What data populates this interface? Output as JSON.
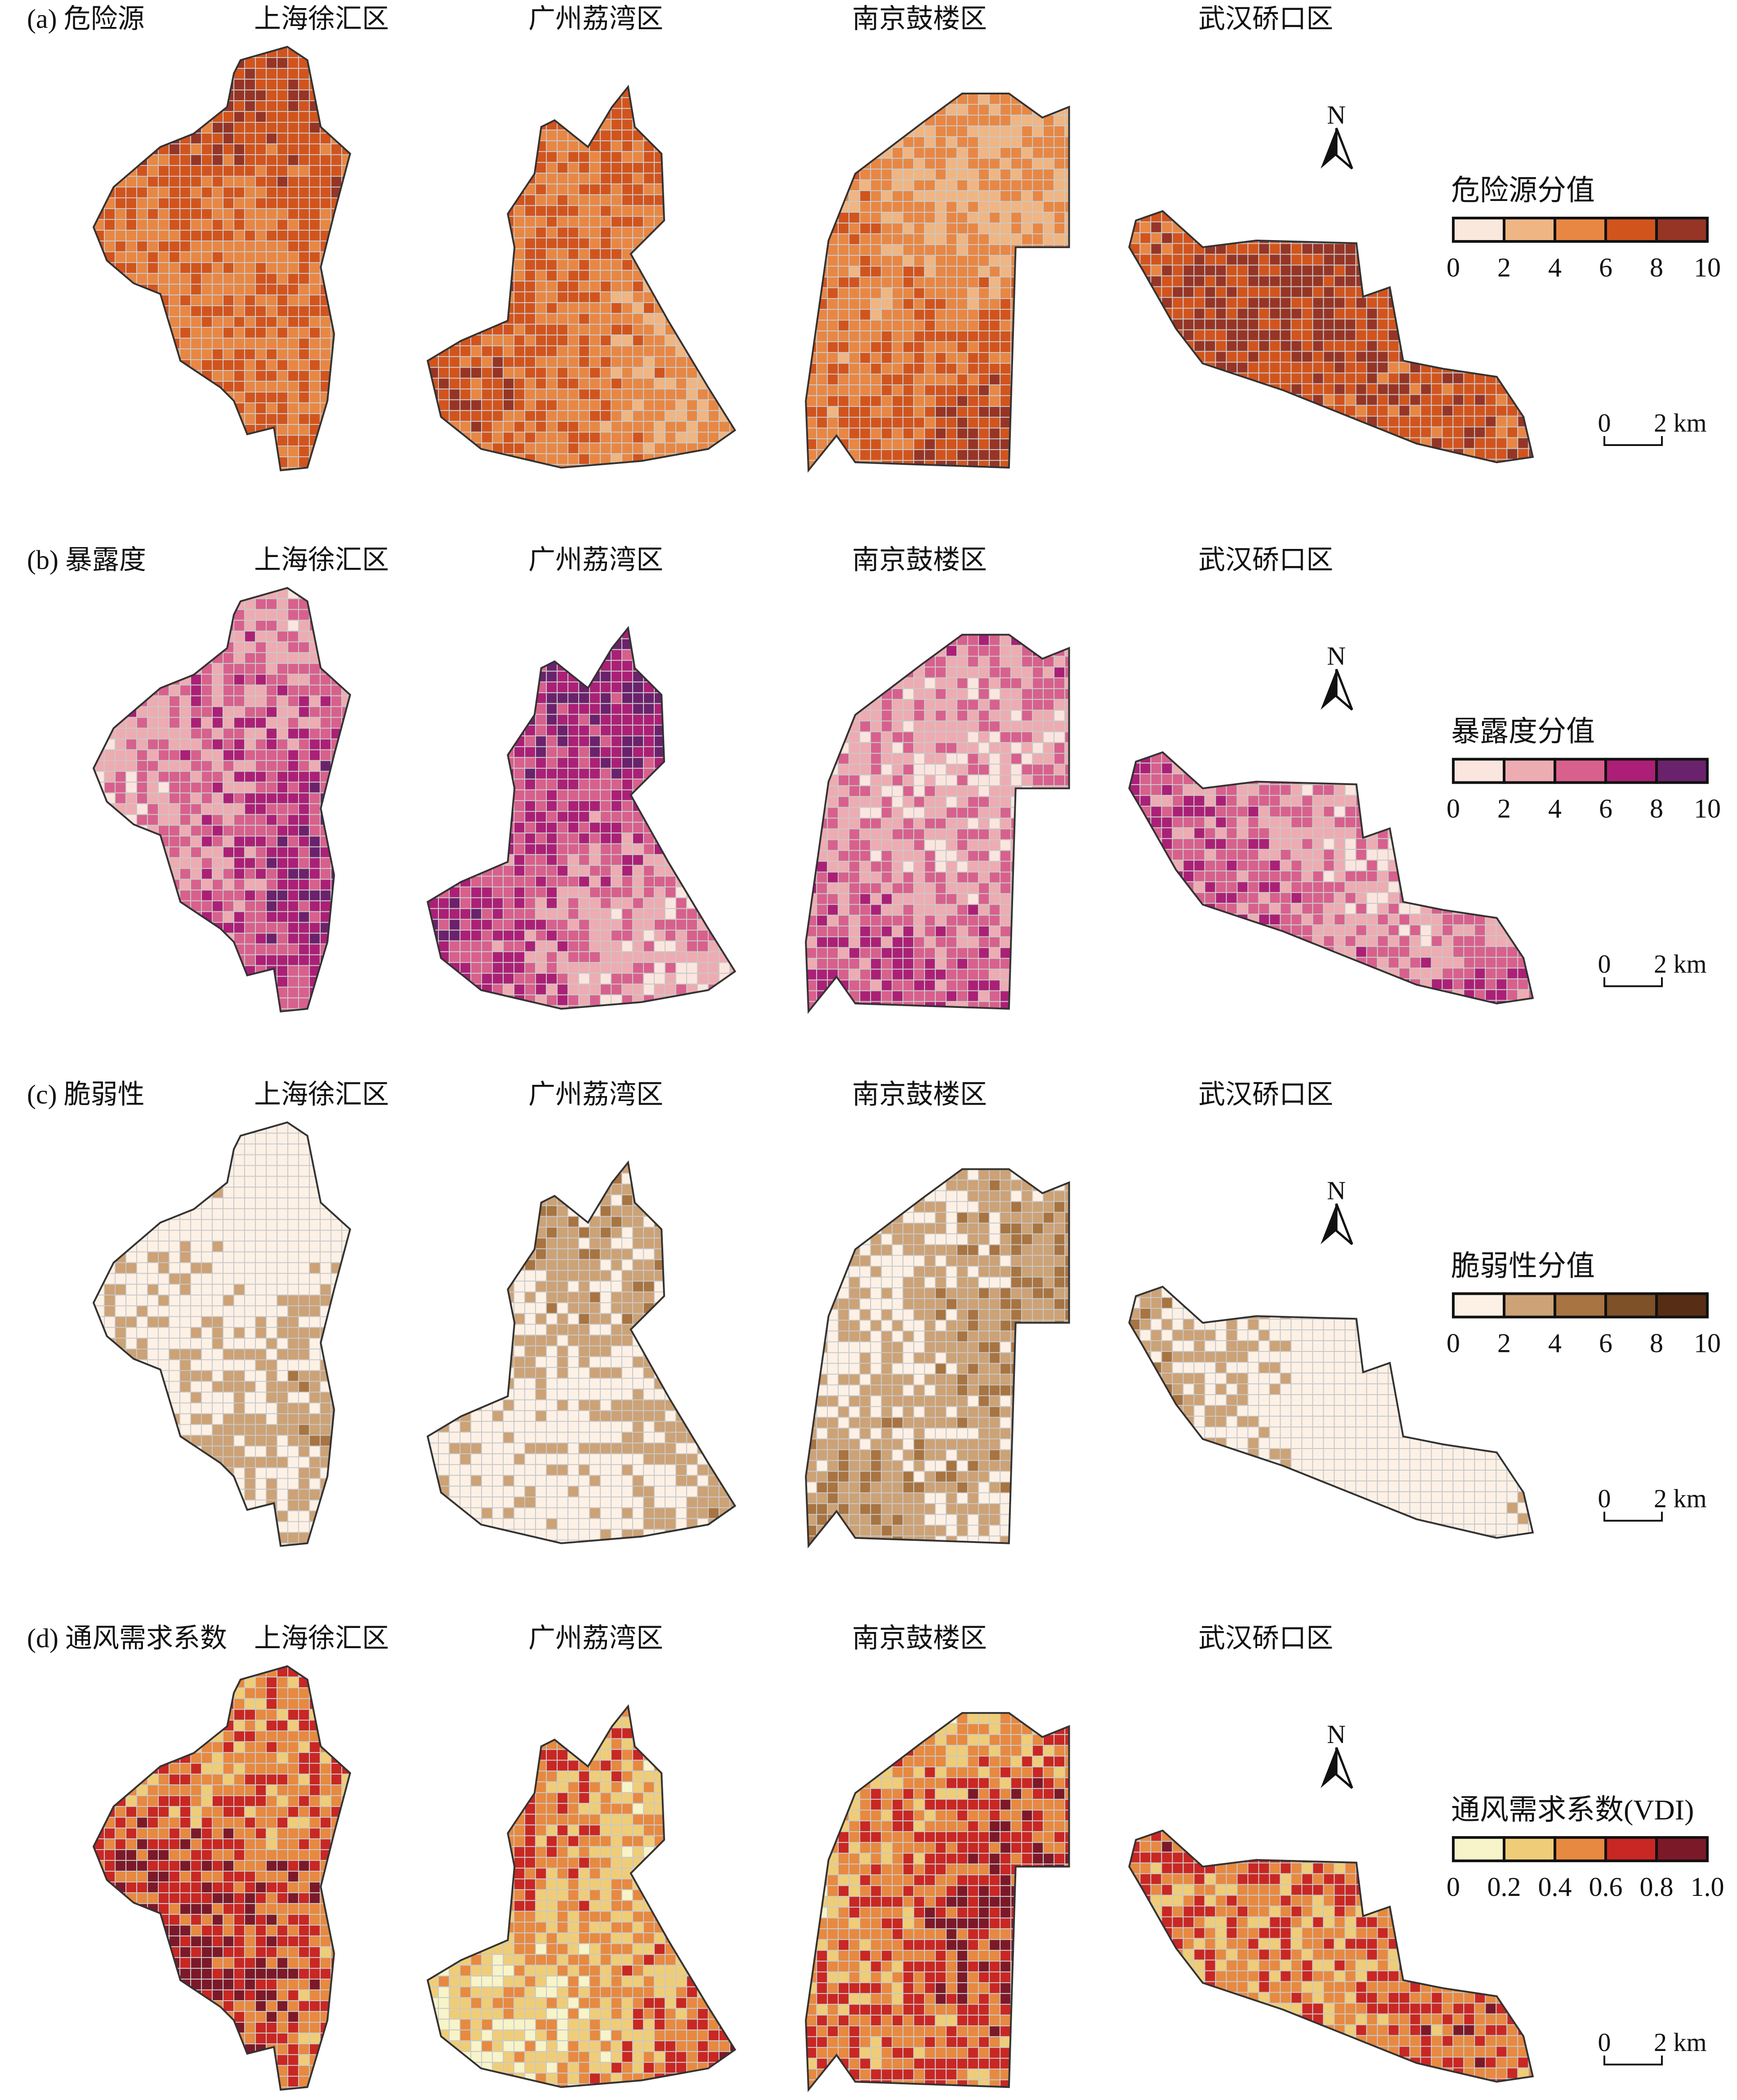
{
  "north_label": "N",
  "scale_bar": {
    "start": "0",
    "end": "2 km"
  },
  "panels": [
    {
      "label": "(a) 危险源",
      "districts": [
        "上海徐汇区",
        "广州荔湾区",
        "南京鼓楼区",
        "武汉硚口区"
      ],
      "legend": {
        "title": "危险源分值",
        "ticks": [
          "0",
          "2",
          "4",
          "6",
          "8",
          "10"
        ],
        "colors": [
          "#fbe8dc",
          "#efb683",
          "#e88744",
          "#d2541d",
          "#963526"
        ]
      }
    },
    {
      "label": "(b) 暴露度",
      "districts": [
        "上海徐汇区",
        "广州荔湾区",
        "南京鼓楼区",
        "武汉硚口区"
      ],
      "legend": {
        "title": "暴露度分值",
        "ticks": [
          "0",
          "2",
          "4",
          "6",
          "8",
          "10"
        ],
        "colors": [
          "#fbe6df",
          "#edacb2",
          "#d8608c",
          "#ab2076",
          "#6b226c"
        ]
      }
    },
    {
      "label": "(c) 脆弱性",
      "districts": [
        "上海徐汇区",
        "广州荔湾区",
        "南京鼓楼区",
        "武汉硚口区"
      ],
      "legend": {
        "title": "脆弱性分值",
        "ticks": [
          "0",
          "2",
          "4",
          "6",
          "8",
          "10"
        ],
        "colors": [
          "#fdf1e6",
          "#cca276",
          "#a87441",
          "#7e5128",
          "#572d16"
        ]
      }
    },
    {
      "label": "(d) 通风需求系数",
      "districts": [
        "上海徐汇区",
        "广州荔湾区",
        "南京鼓楼区",
        "武汉硚口区"
      ],
      "legend": {
        "title": "通风需求系数(VDI)",
        "ticks": [
          "0",
          "0.2",
          "0.4",
          "0.6",
          "0.8",
          "1.0"
        ],
        "colors": [
          "#f7f4c9",
          "#efcd78",
          "#e78940",
          "#c92723",
          "#7c1929"
        ]
      }
    }
  ]
}
